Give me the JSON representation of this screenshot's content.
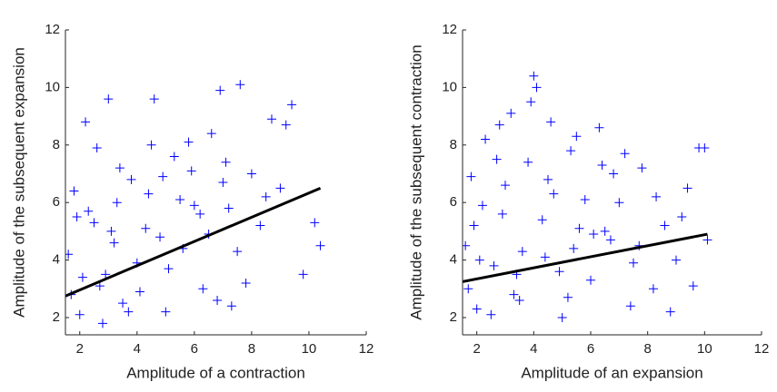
{
  "chart_data": [
    {
      "type": "scatter",
      "xlabel": "Amplitude of a contraction",
      "ylabel": "Amplitude of the subsequent expansion",
      "xlim": [
        1.5,
        12
      ],
      "ylim": [
        1.4,
        12
      ],
      "xticks": [
        2,
        4,
        6,
        8,
        10,
        12
      ],
      "yticks": [
        2,
        4,
        6,
        8,
        10,
        12
      ],
      "series": [
        {
          "type": "scatter",
          "color": "#0000ff",
          "x": [
            1.6,
            1.8,
            2.0,
            2.2,
            2.5,
            2.7,
            3.0,
            3.2,
            3.5,
            3.8,
            4.0,
            4.3,
            4.6,
            5.0,
            5.3,
            5.6,
            6.0,
            6.3,
            6.6,
            7.0,
            7.3,
            7.6,
            8.0,
            8.3,
            8.7,
            9.0,
            9.4,
            9.8,
            10.2,
            10.4,
            1.7,
            2.3,
            2.9,
            3.4,
            4.1,
            4.8,
            5.5,
            6.2,
            6.8,
            7.5,
            2.1,
            2.6,
            3.1,
            3.7,
            4.4,
            5.1,
            5.8,
            6.5,
            7.1,
            7.8,
            1.9,
            3.3,
            4.5,
            5.9,
            6.9,
            8.5,
            9.2,
            2.8,
            4.9,
            7.2
          ],
          "values": [
            4.2,
            6.4,
            2.1,
            8.8,
            5.3,
            3.1,
            9.6,
            4.6,
            2.5,
            6.8,
            3.9,
            5.1,
            9.6,
            2.2,
            7.6,
            4.4,
            5.9,
            3.0,
            8.4,
            6.7,
            2.4,
            10.1,
            7.0,
            5.2,
            8.9,
            6.5,
            9.4,
            3.5,
            5.3,
            4.5,
            2.8,
            5.7,
            3.5,
            7.2,
            2.9,
            4.8,
            6.1,
            5.6,
            2.6,
            4.3,
            3.4,
            7.9,
            5.0,
            2.2,
            6.3,
            3.7,
            8.1,
            4.9,
            7.4,
            3.2,
            5.5,
            6.0,
            8.0,
            7.1,
            9.9,
            6.2,
            8.7,
            1.8,
            6.9,
            5.8
          ]
        },
        {
          "type": "line",
          "color": "#000000",
          "x": [
            1.5,
            10.4
          ],
          "values": [
            2.75,
            6.5
          ]
        }
      ]
    },
    {
      "type": "scatter",
      "xlabel": "Amplitude of an expansion",
      "ylabel": "Amplitude of the subsequent contraction",
      "xlim": [
        1.5,
        12
      ],
      "ylim": [
        1.4,
        12
      ],
      "xticks": [
        2,
        4,
        6,
        8,
        10,
        12
      ],
      "yticks": [
        2,
        4,
        6,
        8,
        10,
        12
      ],
      "series": [
        {
          "type": "scatter",
          "color": "#0000ff",
          "x": [
            1.6,
            1.8,
            2.0,
            2.3,
            2.6,
            2.9,
            3.2,
            3.5,
            3.8,
            4.1,
            4.4,
            4.7,
            5.0,
            5.3,
            5.6,
            6.0,
            6.3,
            6.7,
            7.0,
            7.4,
            7.8,
            8.2,
            8.6,
            9.0,
            9.4,
            9.8,
            10.1,
            1.7,
            2.2,
            2.7,
            3.3,
            3.9,
            4.3,
            4.9,
            5.5,
            6.1,
            6.8,
            7.5,
            8.8,
            9.6,
            2.1,
            2.5,
            3.0,
            3.6,
            4.0,
            4.6,
            5.2,
            5.8,
            6.5,
            7.2,
            1.9,
            2.8,
            3.4,
            4.5,
            5.4,
            6.4,
            7.7,
            8.3,
            9.2,
            10.0
          ],
          "values": [
            4.5,
            6.9,
            2.3,
            8.2,
            3.8,
            5.6,
            9.1,
            2.6,
            7.4,
            10.0,
            4.1,
            6.3,
            2.0,
            7.8,
            5.1,
            3.3,
            8.6,
            4.7,
            6.0,
            2.4,
            7.2,
            3.0,
            5.2,
            4.0,
            6.5,
            7.9,
            4.7,
            3.0,
            5.9,
            7.5,
            2.8,
            9.5,
            5.4,
            3.6,
            8.3,
            4.9,
            7.0,
            3.9,
            2.2,
            3.1,
            4.0,
            2.1,
            6.6,
            4.3,
            10.4,
            8.8,
            2.7,
            6.1,
            5.0,
            7.7,
            5.2,
            8.7,
            3.5,
            6.8,
            4.4,
            7.3,
            4.5,
            6.2,
            5.5,
            7.9
          ]
        },
        {
          "type": "line",
          "color": "#000000",
          "x": [
            1.5,
            10.1
          ],
          "values": [
            3.25,
            4.9
          ]
        }
      ]
    }
  ]
}
